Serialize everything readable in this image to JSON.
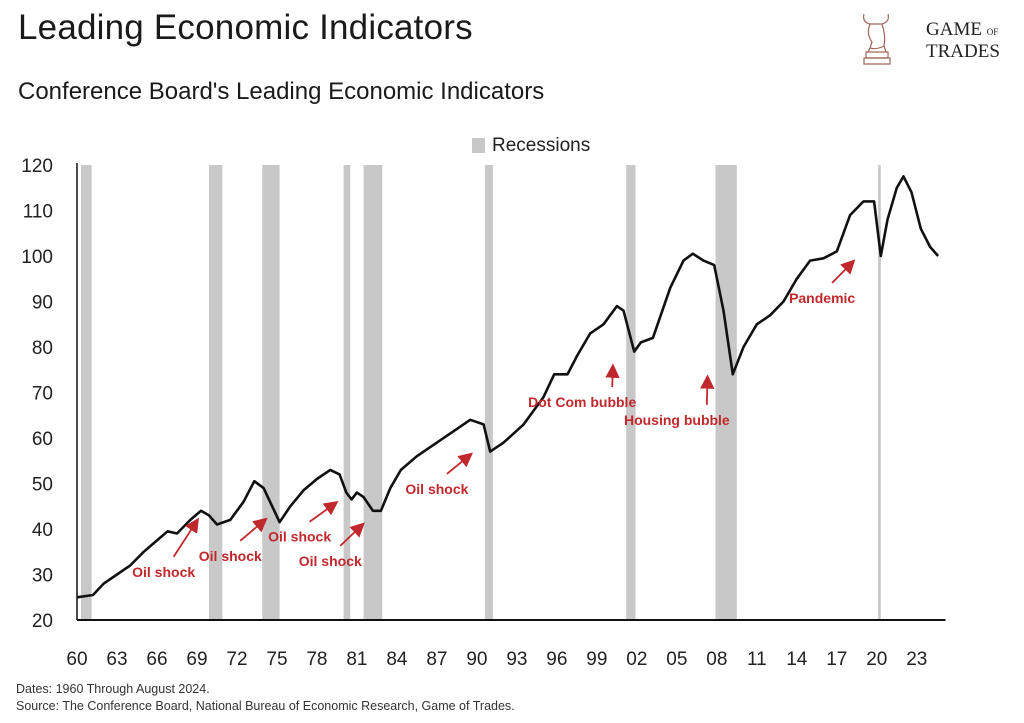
{
  "header": {
    "title": "Leading Economic Indicators",
    "subtitle": "Conference Board's Leading Economic Indicators",
    "logo_text": [
      "GAME",
      "OF",
      "TRADES"
    ]
  },
  "footer": {
    "dates": "Dates: 1960 Through August 2024.",
    "source": "Source: The Conference Board, National Bureau of Economic Research, Game of Trades."
  },
  "chart_data": {
    "type": "line",
    "title": "Conference Board's Leading Economic Indicators",
    "xlabel": "",
    "ylabel": "",
    "xlim": [
      1960,
      2024.7
    ],
    "ylim": [
      20,
      120
    ],
    "yticks": [
      20,
      30,
      40,
      50,
      60,
      70,
      80,
      90,
      100,
      110,
      120
    ],
    "xticks": [
      {
        "year": 1960,
        "label": "60"
      },
      {
        "year": 1963,
        "label": "63"
      },
      {
        "year": 1966,
        "label": "66"
      },
      {
        "year": 1969,
        "label": "69"
      },
      {
        "year": 1972,
        "label": "72"
      },
      {
        "year": 1975,
        "label": "75"
      },
      {
        "year": 1978,
        "label": "78"
      },
      {
        "year": 1981,
        "label": "81"
      },
      {
        "year": 1984,
        "label": "84"
      },
      {
        "year": 1987,
        "label": "87"
      },
      {
        "year": 1990,
        "label": "90"
      },
      {
        "year": 1993,
        "label": "93"
      },
      {
        "year": 1996,
        "label": "96"
      },
      {
        "year": 1999,
        "label": "99"
      },
      {
        "year": 2002,
        "label": "02"
      },
      {
        "year": 2005,
        "label": "05"
      },
      {
        "year": 2008,
        "label": "08"
      },
      {
        "year": 2011,
        "label": "11"
      },
      {
        "year": 2014,
        "label": "14"
      },
      {
        "year": 2017,
        "label": "17"
      },
      {
        "year": 2020,
        "label": "20"
      },
      {
        "year": 2023,
        "label": "23"
      }
    ],
    "grid": false,
    "legend": {
      "position": "top-center",
      "label": "Recessions",
      "color": "#c8c8c8"
    },
    "line_color": "#111111",
    "annotation_color": "#c0282d",
    "recessions": [
      [
        1960.3,
        1961.1
      ],
      [
        1969.9,
        1970.9
      ],
      [
        1973.9,
        1975.2
      ],
      [
        1980.0,
        1980.5
      ],
      [
        1981.5,
        1982.9
      ],
      [
        1990.6,
        1991.2
      ],
      [
        2001.2,
        2001.9
      ],
      [
        2007.9,
        2009.5
      ],
      [
        2020.1,
        2020.3
      ]
    ],
    "series": [
      {
        "name": "LEI",
        "x": [
          1960,
          1961.2,
          1962,
          1963,
          1964,
          1965,
          1966,
          1966.8,
          1967.5,
          1968.5,
          1969.3,
          1969.9,
          1970.5,
          1971.5,
          1972.5,
          1973.3,
          1974,
          1974.8,
          1975.2,
          1976,
          1977,
          1978,
          1979,
          1979.7,
          1980.2,
          1980.6,
          1981,
          1981.5,
          1982.2,
          1982.8,
          1983.5,
          1984.3,
          1985.5,
          1987,
          1988.5,
          1989.5,
          1990.5,
          1991,
          1992,
          1993.5,
          1995,
          1995.8,
          1996.8,
          1997.5,
          1998.5,
          1999.5,
          2000.5,
          2001,
          2001.8,
          2002.3,
          2003.2,
          2004.5,
          2005.5,
          2006.2,
          2007,
          2007.8,
          2008.5,
          2009.2,
          2010,
          2011,
          2012,
          2013,
          2014,
          2015,
          2016,
          2017,
          2018,
          2019,
          2019.8,
          2020.3,
          2020.8,
          2021.5,
          2022,
          2022.6,
          2023.3,
          2024,
          2024.6
        ],
        "values": [
          25,
          25.5,
          28,
          30,
          32,
          35,
          37.5,
          39.5,
          39,
          42,
          44,
          43,
          41,
          42,
          46,
          50.5,
          49,
          44,
          41.5,
          45,
          48.5,
          51,
          53,
          52,
          48,
          46.5,
          48,
          47,
          44,
          44,
          49,
          53,
          56,
          59,
          62,
          64,
          63,
          57,
          59,
          63,
          69,
          74,
          74,
          78,
          83,
          85,
          89,
          88,
          79,
          81,
          82,
          93,
          99,
          100.5,
          99,
          98,
          88,
          74,
          80,
          85,
          87,
          90,
          95,
          99,
          99.5,
          101,
          109,
          112,
          112,
          100,
          108,
          115,
          117.5,
          114,
          106,
          102,
          100
        ]
      }
    ],
    "annotations": [
      {
        "text": "Oil shock",
        "label_at": [
          1966.5,
          29.5
        ],
        "arrow_to": [
          1969.0,
          41.8
        ]
      },
      {
        "text": "Oil shock",
        "label_at": [
          1971.5,
          33.0
        ],
        "arrow_to": [
          1974.1,
          42.0
        ]
      },
      {
        "text": "Oil shock",
        "label_at": [
          1976.7,
          37.2
        ],
        "arrow_to": [
          1979.4,
          45.7
        ]
      },
      {
        "text": "Oil shock",
        "label_at": [
          1979.0,
          31.9
        ],
        "arrow_to": [
          1981.4,
          40.9
        ]
      },
      {
        "text": "Oil shock",
        "label_at": [
          1987.0,
          47.7
        ],
        "arrow_to": [
          1989.5,
          56.3
        ]
      },
      {
        "text": "Dot Com bubble",
        "label_at": [
          1997.9,
          66.8
        ],
        "arrow_to": [
          2000.2,
          75.6
        ]
      },
      {
        "text": "Housing bubble",
        "label_at": [
          2005.0,
          62.9
        ],
        "arrow_to": [
          2007.3,
          73.2
        ]
      },
      {
        "text": "Pandemic",
        "label_at": [
          2015.9,
          89.7
        ],
        "arrow_to": [
          2018.2,
          98.7
        ]
      }
    ]
  }
}
